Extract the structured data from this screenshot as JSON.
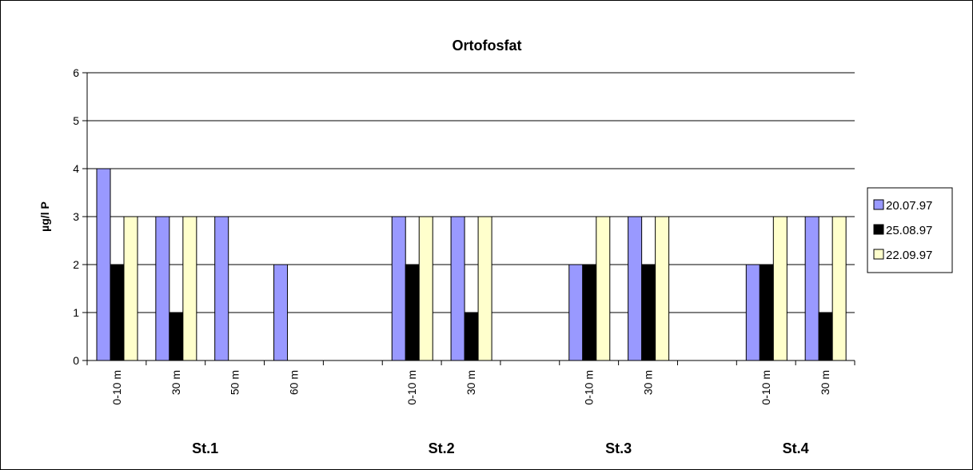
{
  "chart_data": {
    "type": "bar",
    "title": "Ortofosfat",
    "ylabel": "µg/l P",
    "xlabel": "",
    "ylim": [
      0,
      6
    ],
    "yticks": [
      0,
      1,
      2,
      3,
      4,
      5,
      6
    ],
    "grid": true,
    "legend_position": "right",
    "categories": [
      "0-10 m",
      "30 m",
      "50 m",
      "60 m",
      "",
      "0-10 m",
      "30 m",
      "",
      "0-10 m",
      "30 m",
      "",
      "0-10 m",
      "30 m"
    ],
    "groups": [
      {
        "label": "St.1",
        "from": 0,
        "to": 3
      },
      {
        "label": "St.2",
        "from": 5,
        "to": 6
      },
      {
        "label": "St.3",
        "from": 8,
        "to": 9
      },
      {
        "label": "St.4",
        "from": 11,
        "to": 12
      }
    ],
    "series": [
      {
        "name": "20.07.97",
        "color": "#9999ff",
        "values": [
          4,
          3,
          3,
          2,
          null,
          3,
          3,
          null,
          2,
          3,
          null,
          2,
          3
        ]
      },
      {
        "name": "25.08.97",
        "color": "#000000",
        "values": [
          2,
          1,
          null,
          null,
          null,
          2,
          1,
          null,
          2,
          2,
          null,
          2,
          1
        ]
      },
      {
        "name": "22.09.97",
        "color": "#ffffcc",
        "values": [
          3,
          3,
          null,
          null,
          null,
          3,
          3,
          null,
          3,
          3,
          null,
          3,
          3
        ]
      }
    ]
  }
}
